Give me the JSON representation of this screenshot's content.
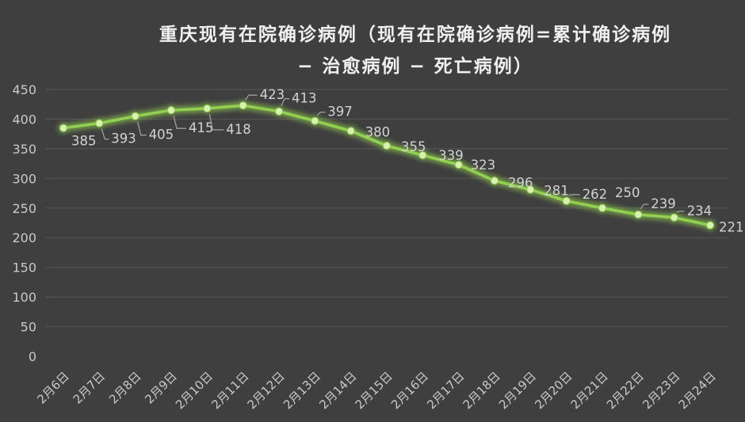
{
  "page": {
    "background": "#3F3F3F"
  },
  "chart_data": {
    "type": "line",
    "title": "重庆现有在院确诊病例（现有在院确诊病例=累计确诊病例 − 治愈病例 − 死亡病例）",
    "title_lines": [
      "重庆现有在院确诊病例（现有在院确诊病例=累计确诊病例",
      "− 治愈病例 − 死亡病例）"
    ],
    "categories": [
      "2月6日",
      "2月7日",
      "2月8日",
      "2月9日",
      "2月10日",
      "2月11日",
      "2月12日",
      "2月13日",
      "2月14日",
      "2月15日",
      "2月16日",
      "2月17日",
      "2月18日",
      "2月19日",
      "2月20日",
      "2月21日",
      "2月22日",
      "2月23日",
      "2月24日"
    ],
    "values": [
      385,
      393,
      405,
      415,
      418,
      423,
      413,
      397,
      380,
      355,
      339,
      323,
      296,
      281,
      262,
      250,
      239,
      234,
      221
    ],
    "data_labels": [
      "385",
      "393",
      "405",
      "415",
      "418",
      "423",
      "413",
      "397",
      "380",
      "355",
      "339",
      "323",
      "296",
      "281",
      "262",
      "250",
      "239",
      "234",
      "221"
    ],
    "xlabel": "",
    "ylabel": "",
    "ylim": [
      0,
      450
    ],
    "ytick_step": 50,
    "yticks": [
      "0",
      "50",
      "100",
      "150",
      "200",
      "250",
      "300",
      "350",
      "400",
      "450"
    ],
    "grid": "horizontal",
    "legend": "none",
    "colors": {
      "background": "#3F3F3F",
      "line": "#92D050",
      "marker": "#D9EFB4",
      "grid": "#575757",
      "tick_label": "#C9C9C9",
      "data_label": "#D3D3D3",
      "leader": "#9E9E9E",
      "title": "#F0F0F0"
    },
    "label_layout": [
      [
        10,
        22,
        "none"
      ],
      [
        15,
        25,
        "down"
      ],
      [
        17,
        29,
        "down"
      ],
      [
        22,
        28,
        "down"
      ],
      [
        24,
        32,
        "down"
      ],
      [
        21,
        -8,
        "up"
      ],
      [
        16,
        -11,
        "up"
      ],
      [
        16,
        -6,
        "up"
      ],
      [
        18,
        7,
        "none"
      ],
      [
        18,
        7,
        "none"
      ],
      [
        20,
        6,
        "none"
      ],
      [
        15,
        6,
        "none"
      ],
      [
        17,
        8,
        "none"
      ],
      [
        17,
        7,
        "none"
      ],
      [
        20,
        -3,
        "up"
      ],
      [
        16,
        -14,
        "none"
      ],
      [
        16,
        -8,
        "up"
      ],
      [
        16,
        -3,
        "up"
      ],
      [
        11,
        8,
        "none"
      ]
    ]
  }
}
